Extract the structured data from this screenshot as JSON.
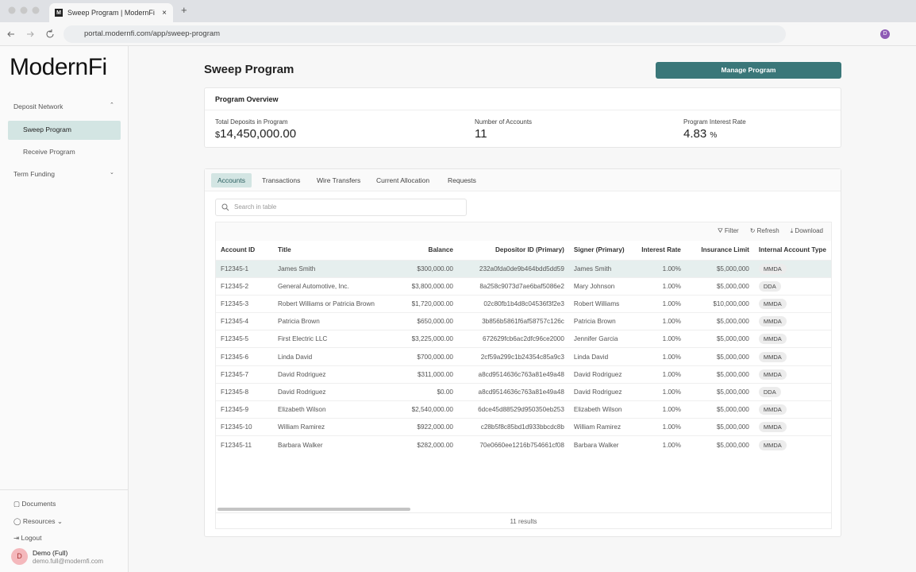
{
  "browser": {
    "tab_icon": "M",
    "tab_title": "Sweep Program | ModernFi",
    "url": "portal.modernfi.com/app/sweep-program",
    "avatar": "D"
  },
  "sidebar": {
    "logo": "ModernFi",
    "nav": [
      {
        "label": "Deposit Network",
        "children": [
          "Sweep Program",
          "Receive Program"
        ]
      },
      {
        "label": "Term Funding"
      }
    ],
    "links": [
      "Documents",
      "Resources",
      "Logout"
    ],
    "user": {
      "initial": "D",
      "name": "Demo (Full)",
      "email": "demo.full@modernfi.com"
    }
  },
  "header": {
    "title": "Sweep Program",
    "button": "Manage Program"
  },
  "overview": {
    "title": "Program Overview",
    "stats": [
      {
        "label": "Total Deposits in Program",
        "prefix": "$",
        "value": "14,450,000.00"
      },
      {
        "label": "Number of Accounts",
        "value": "11"
      },
      {
        "label": "Program Interest Rate",
        "value": "4.83",
        "suffix": "%"
      }
    ]
  },
  "tabs": [
    "Accounts",
    "Transactions",
    "Wire Transfers",
    "Current Allocation",
    "Requests"
  ],
  "search": {
    "placeholder": "Search in table"
  },
  "toolbar": [
    "Filter",
    "Refresh",
    "Download"
  ],
  "table": {
    "columns": [
      "Account ID",
      "Title",
      "Balance",
      "Depositor ID (Primary)",
      "Signer (Primary)",
      "Interest Rate",
      "Insurance Limit",
      "Internal Account Type"
    ],
    "rows": [
      [
        "F12345-1",
        "James Smith",
        "$300,000.00",
        "232a0fda0de9b464bdd5dd59",
        "James Smith",
        "1.00%",
        "$5,000,000",
        "MMDA"
      ],
      [
        "F12345-2",
        "General Automotive, Inc.",
        "$3,800,000.00",
        "8a258c9073d7ae6baf5086e2",
        "Mary Johnson",
        "1.00%",
        "$5,000,000",
        "DDA"
      ],
      [
        "F12345-3",
        "Robert Williams or Patricia Brown",
        "$1,720,000.00",
        "02c80fb1b4d8c04536f3f2e3",
        "Robert Williams",
        "1.00%",
        "$10,000,000",
        "MMDA"
      ],
      [
        "F12345-4",
        "Patricia Brown",
        "$650,000.00",
        "3b856b5861f6af58757c126c",
        "Patricia Brown",
        "1.00%",
        "$5,000,000",
        "MMDA"
      ],
      [
        "F12345-5",
        "First Electric LLC",
        "$3,225,000.00",
        "672629fcb6ac2dfc96ce2000",
        "Jennifer Garcia",
        "1.00%",
        "$5,000,000",
        "MMDA"
      ],
      [
        "F12345-6",
        "Linda David",
        "$700,000.00",
        "2cf59a299c1b24354c85a9c3",
        "Linda David",
        "1.00%",
        "$5,000,000",
        "MMDA"
      ],
      [
        "F12345-7",
        "David Rodriguez",
        "$311,000.00",
        "a8cd9514636c763a81e49a48",
        "David Rodriguez",
        "1.00%",
        "$5,000,000",
        "MMDA"
      ],
      [
        "F12345-8",
        "David Rodriguez",
        "$0.00",
        "a8cd9514636c763a81e49a48",
        "David Rodriguez",
        "1.00%",
        "$5,000,000",
        "DDA"
      ],
      [
        "F12345-9",
        "Elizabeth Wilson",
        "$2,540,000.00",
        "6dce45d88529d950350eb253",
        "Elizabeth Wilson",
        "1.00%",
        "$5,000,000",
        "MMDA"
      ],
      [
        "F12345-10",
        "William Ramirez",
        "$922,000.00",
        "c28b5f8c85bd1d933bbcdc8b",
        "William Ramirez",
        "1.00%",
        "$5,000,000",
        "MMDA"
      ],
      [
        "F12345-11",
        "Barbara Walker",
        "$282,000.00",
        "70e0660ee1216b754661cf08",
        "Barbara Walker",
        "1.00%",
        "$5,000,000",
        "MMDA"
      ]
    ]
  },
  "footer": {
    "results": "11 results"
  }
}
